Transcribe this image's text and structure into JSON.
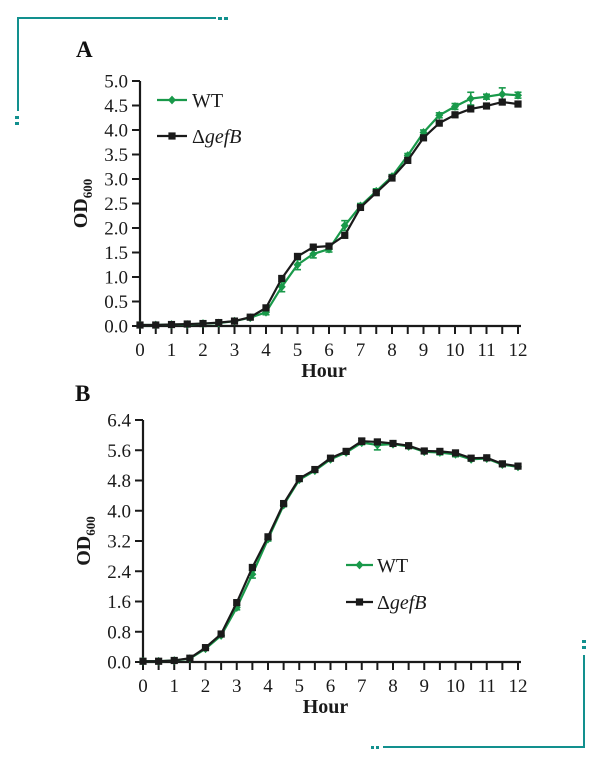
{
  "figure": {
    "panel_a_label": "A",
    "panel_b_label": "B",
    "accent_teal": "#12908e",
    "text_color": "#1a1a1a",
    "series_green": "#19994a",
    "series_black": "#1a1a1a"
  },
  "chart_data": [
    {
      "type": "line",
      "panel": "A",
      "title": "",
      "xlabel": "Hour",
      "ylabel": "OD",
      "ylabel_subscript": "600",
      "xlim": [
        0,
        12
      ],
      "ylim": [
        0,
        5.0
      ],
      "xtick_step": 0.5,
      "xtick_label_step": 1,
      "ytick_step": 0.5,
      "grid": false,
      "legend_position": "top-left-inside",
      "x": [
        0,
        0.5,
        1,
        1.5,
        2,
        2.5,
        3,
        3.5,
        4,
        4.5,
        5,
        5.5,
        6,
        6.5,
        7,
        7.5,
        8,
        8.5,
        9,
        9.5,
        10,
        10.5,
        11,
        11.5,
        12
      ],
      "series": [
        {
          "name": "WT",
          "color": "#19994a",
          "marker": "diamond",
          "values": [
            0.02,
            0.02,
            0.03,
            0.03,
            0.05,
            0.06,
            0.1,
            0.17,
            0.28,
            0.8,
            1.25,
            1.47,
            1.57,
            2.05,
            2.45,
            2.75,
            3.05,
            3.48,
            3.95,
            4.3,
            4.48,
            4.64,
            4.68,
            4.73,
            4.71
          ],
          "err": [
            0,
            0,
            0,
            0,
            0,
            0,
            0,
            0.03,
            0.05,
            0.1,
            0.1,
            0.08,
            0.06,
            0.1,
            0.05,
            0.05,
            0.04,
            0.04,
            0.05,
            0.05,
            0.06,
            0.13,
            0.05,
            0.13,
            0.06
          ]
        },
        {
          "name": "ΔgefB",
          "name_parts": {
            "normal": "Δ",
            "italic": "gefB"
          },
          "color": "#1a1a1a",
          "marker": "square",
          "values": [
            0.02,
            0.02,
            0.03,
            0.04,
            0.05,
            0.07,
            0.1,
            0.18,
            0.37,
            0.97,
            1.42,
            1.61,
            1.63,
            1.85,
            2.42,
            2.72,
            3.02,
            3.38,
            3.84,
            4.14,
            4.31,
            4.43,
            4.49,
            4.57,
            4.53
          ]
        }
      ]
    },
    {
      "type": "line",
      "panel": "B",
      "title": "",
      "xlabel": "Hour",
      "ylabel": "OD",
      "ylabel_subscript": "600",
      "xlim": [
        0,
        12
      ],
      "ylim": [
        0,
        6.4
      ],
      "xtick_step": 0.5,
      "xtick_label_step": 1,
      "ytick_step": 0.8,
      "grid": false,
      "legend_position": "bottom-right-inside",
      "x": [
        0,
        0.5,
        1,
        1.5,
        2,
        2.5,
        3,
        3.5,
        4,
        4.5,
        5,
        5.5,
        6,
        6.5,
        7,
        7.5,
        8,
        8.5,
        9,
        9.5,
        10,
        10.5,
        11,
        11.5,
        12
      ],
      "series": [
        {
          "name": "WT",
          "color": "#19994a",
          "marker": "diamond",
          "values": [
            0.02,
            0.02,
            0.04,
            0.09,
            0.35,
            0.7,
            1.44,
            2.32,
            3.25,
            4.15,
            4.82,
            5.06,
            5.36,
            5.54,
            5.8,
            5.74,
            5.76,
            5.7,
            5.56,
            5.54,
            5.49,
            5.36,
            5.38,
            5.22,
            5.16
          ],
          "err": [
            0,
            0,
            0,
            0,
            0.02,
            0.03,
            0.06,
            0.1,
            0.05,
            0.04,
            0.04,
            0.03,
            0.03,
            0.04,
            0.05,
            0.13,
            0.03,
            0.04,
            0.05,
            0.06,
            0.06,
            0.04,
            0.04,
            0.04,
            0.04
          ]
        },
        {
          "name": "ΔgefB",
          "name_parts": {
            "normal": "Δ",
            "italic": "gefB"
          },
          "color": "#1a1a1a",
          "marker": "square",
          "values": [
            0.02,
            0.02,
            0.04,
            0.1,
            0.38,
            0.74,
            1.57,
            2.5,
            3.31,
            4.19,
            4.85,
            5.09,
            5.39,
            5.57,
            5.84,
            5.82,
            5.78,
            5.72,
            5.58,
            5.57,
            5.53,
            5.39,
            5.4,
            5.24,
            5.18
          ],
          "err": [
            0,
            0,
            0,
            0,
            0,
            0,
            0,
            0,
            0,
            0,
            0,
            0,
            0,
            0,
            0.08,
            0,
            0,
            0,
            0,
            0,
            0,
            0,
            0,
            0,
            0
          ]
        }
      ]
    }
  ]
}
